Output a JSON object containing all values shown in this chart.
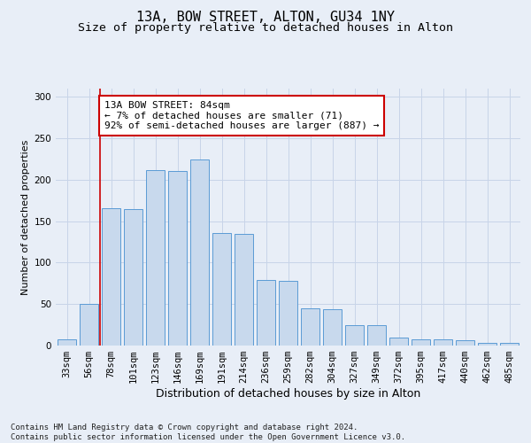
{
  "title1": "13A, BOW STREET, ALTON, GU34 1NY",
  "title2": "Size of property relative to detached houses in Alton",
  "xlabel": "Distribution of detached houses by size in Alton",
  "ylabel": "Number of detached properties",
  "categories": [
    "33sqm",
    "56sqm",
    "78sqm",
    "101sqm",
    "123sqm",
    "146sqm",
    "169sqm",
    "191sqm",
    "214sqm",
    "236sqm",
    "259sqm",
    "282sqm",
    "304sqm",
    "327sqm",
    "349sqm",
    "372sqm",
    "395sqm",
    "417sqm",
    "440sqm",
    "462sqm",
    "485sqm"
  ],
  "values": [
    7,
    50,
    166,
    165,
    212,
    211,
    225,
    136,
    135,
    79,
    78,
    45,
    44,
    25,
    25,
    10,
    7,
    7,
    6,
    3,
    3
  ],
  "bar_color": "#c8d9ed",
  "bar_edge_color": "#5b9bd5",
  "vline_x": 1.5,
  "vline_color": "#cc0000",
  "annotation_text": "13A BOW STREET: 84sqm\n← 7% of detached houses are smaller (71)\n92% of semi-detached houses are larger (887) →",
  "annotation_box_color": "#ffffff",
  "annotation_box_edge": "#cc0000",
  "ylim": [
    0,
    310
  ],
  "yticks": [
    0,
    50,
    100,
    150,
    200,
    250,
    300
  ],
  "grid_color": "#c8d4e8",
  "background_color": "#e8eef7",
  "footer": "Contains HM Land Registry data © Crown copyright and database right 2024.\nContains public sector information licensed under the Open Government Licence v3.0.",
  "title1_fontsize": 11,
  "title2_fontsize": 9.5,
  "xlabel_fontsize": 9,
  "ylabel_fontsize": 8,
  "tick_fontsize": 7.5,
  "annotation_fontsize": 8,
  "footer_fontsize": 6.5
}
